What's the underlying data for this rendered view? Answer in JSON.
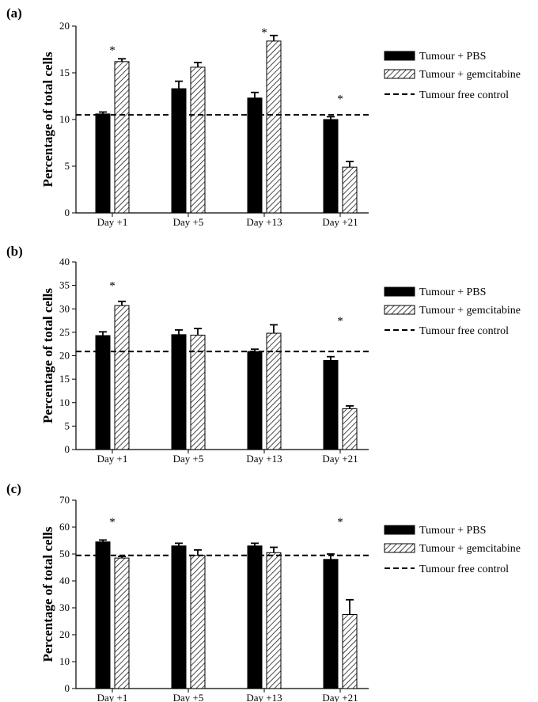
{
  "chart_data": [
    {
      "type": "bar",
      "panel": "(a)",
      "ylabel": "Percentage of total cells",
      "categories": [
        "Day +1",
        "Day +5",
        "Day +13",
        "Day +21"
      ],
      "ylim": [
        0,
        20
      ],
      "yticks": [
        0,
        5,
        10,
        15,
        20
      ],
      "series": [
        {
          "name": "Tumour + PBS",
          "values": [
            10.6,
            13.3,
            12.3,
            10.0
          ],
          "errors": [
            0.2,
            0.8,
            0.6,
            0.3
          ]
        },
        {
          "name": "Tumour + gemcitabine",
          "values": [
            16.2,
            15.6,
            18.4,
            4.9
          ],
          "errors": [
            0.3,
            0.5,
            0.6,
            0.6
          ]
        }
      ],
      "control": {
        "name": "Tumour free control",
        "value": 10.5
      },
      "significance": [
        {
          "category": "Day +1",
          "label": "*",
          "y": 17.7
        },
        {
          "category": "Day +13",
          "label": "*",
          "y": 19.6
        },
        {
          "category": "Day +21",
          "label": "*",
          "y": 12.5
        }
      ]
    },
    {
      "type": "bar",
      "panel": "(b)",
      "ylabel": "Percentage of total cells",
      "categories": [
        "Day +1",
        "Day +5",
        "Day +13",
        "Day +21"
      ],
      "ylim": [
        0,
        40
      ],
      "yticks": [
        0,
        5,
        10,
        15,
        20,
        25,
        30,
        35,
        40
      ],
      "series": [
        {
          "name": "Tumour + PBS",
          "values": [
            24.3,
            24.5,
            20.9,
            19.0
          ],
          "errors": [
            0.8,
            1.0,
            0.5,
            0.8
          ]
        },
        {
          "name": "Tumour + gemcitabine",
          "values": [
            30.7,
            24.4,
            24.8,
            8.7
          ],
          "errors": [
            0.9,
            1.4,
            1.8,
            0.6
          ]
        }
      ],
      "control": {
        "name": "Tumour free control",
        "value": 20.9
      },
      "significance": [
        {
          "category": "Day +1",
          "label": "*",
          "y": 35.5
        },
        {
          "category": "Day +21",
          "label": "*",
          "y": 28.0
        }
      ]
    },
    {
      "type": "bar",
      "panel": "(c)",
      "ylabel": "Percentage of total cells",
      "categories": [
        "Day +1",
        "Day +5",
        "Day +13",
        "Day +21"
      ],
      "ylim": [
        0,
        70
      ],
      "yticks": [
        0,
        10,
        20,
        30,
        40,
        50,
        60,
        70
      ],
      "series": [
        {
          "name": "Tumour + PBS",
          "values": [
            54.5,
            53.0,
            53.0,
            48.0
          ],
          "errors": [
            0.7,
            1.0,
            1.0,
            2.0
          ]
        },
        {
          "name": "Tumour + gemcitabine",
          "values": [
            48.5,
            49.5,
            50.5,
            27.5
          ],
          "errors": [
            0.6,
            2.0,
            2.0,
            5.5
          ]
        }
      ],
      "control": {
        "name": "Tumour free control",
        "value": 49.5
      },
      "significance": [
        {
          "category": "Day +1",
          "label": "*",
          "y": 63.0
        },
        {
          "category": "Day +21",
          "label": "*",
          "y": 63.0
        }
      ]
    }
  ],
  "colors": {
    "pbs": "#000000",
    "gem_stroke": "#000000",
    "gem_hatch": "#000000",
    "background": "#ffffff"
  }
}
